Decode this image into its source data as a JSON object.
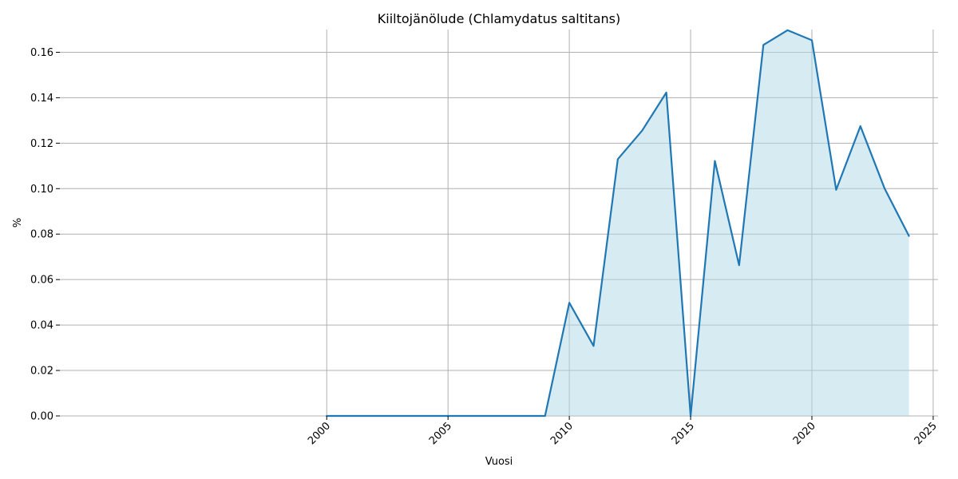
{
  "chart_data": {
    "type": "area",
    "title": "Kiiltojänölude (Chlamydatus saltitans)",
    "xlabel": "Vuosi",
    "ylabel": "%",
    "xlim": [
      1989,
      2025.2
    ],
    "ylim": [
      0,
      0.17
    ],
    "x_ticks": [
      2000,
      2005,
      2010,
      2015,
      2020,
      2025
    ],
    "y_ticks": [
      0.0,
      0.02,
      0.04,
      0.06,
      0.08,
      0.1,
      0.12,
      0.14,
      0.16
    ],
    "grid": true,
    "x": [
      2000,
      2001,
      2002,
      2003,
      2004,
      2005,
      2006,
      2007,
      2008,
      2009,
      2010,
      2011,
      2012,
      2013,
      2014,
      2015,
      2016,
      2017,
      2018,
      2019,
      2020,
      2021,
      2022,
      2023,
      2024
    ],
    "values": [
      0,
      0,
      0,
      0,
      0,
      0,
      0,
      0,
      0,
      0,
      0.0498,
      0.0308,
      0.113,
      0.1255,
      0.1423,
      0,
      0.1122,
      0.0663,
      0.1632,
      0.1697,
      0.1653,
      0.0995,
      0.1275,
      0.1,
      0.0792
    ],
    "colors": {
      "line": "#1f77b4",
      "fill": "#add8e6",
      "grid": "#b0b0b0"
    }
  }
}
